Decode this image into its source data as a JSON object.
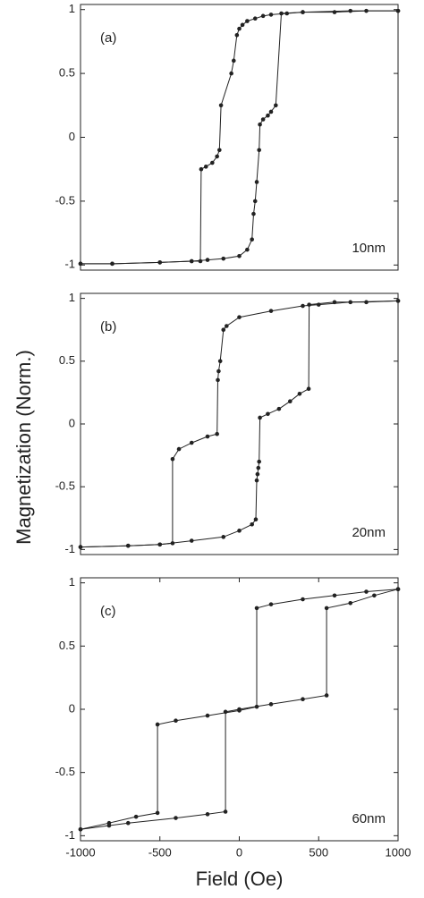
{
  "chart_data": [
    {
      "type": "line",
      "marker": "circle",
      "label": "(a)",
      "annotation": "10nm",
      "ylim": [
        -1.04,
        1.04
      ],
      "yticks": [
        -1,
        -0.5,
        0,
        0.5,
        1
      ],
      "xlim": [
        -1000,
        1000
      ],
      "series": [
        {
          "color": "#222222",
          "x": [
            1000,
            800,
            600,
            400,
            300,
            200,
            150,
            100,
            50,
            20,
            0,
            -15,
            -35,
            -50,
            -115,
            -125,
            -140,
            -170,
            -210,
            -240,
            -245,
            -300,
            -500,
            -800,
            -1000
          ],
          "values": [
            0.99,
            0.99,
            0.98,
            0.98,
            0.97,
            0.96,
            0.95,
            0.93,
            0.91,
            0.88,
            0.85,
            0.8,
            0.6,
            0.5,
            0.25,
            -0.1,
            -0.15,
            -0.2,
            -0.23,
            -0.25,
            -0.97,
            -0.97,
            -0.98,
            -0.99,
            -0.99
          ]
        },
        {
          "color": "#222222",
          "x": [
            -1000,
            -800,
            -500,
            -300,
            -200,
            -100,
            0,
            50,
            80,
            90,
            100,
            110,
            125,
            130,
            150,
            180,
            200,
            230,
            265,
            400,
            700,
            1000
          ],
          "values": [
            -0.99,
            -0.99,
            -0.98,
            -0.97,
            -0.96,
            -0.95,
            -0.93,
            -0.88,
            -0.8,
            -0.6,
            -0.5,
            -0.35,
            -0.1,
            0.1,
            0.14,
            0.17,
            0.2,
            0.25,
            0.97,
            0.98,
            0.99,
            0.99
          ]
        }
      ]
    },
    {
      "type": "line",
      "marker": "circle",
      "label": "(b)",
      "annotation": "20nm",
      "ylabel": "Magnetization (Norm.)",
      "ylim": [
        -1.04,
        1.04
      ],
      "yticks": [
        -1,
        -0.5,
        0,
        0.5,
        1
      ],
      "xlim": [
        -1000,
        1000
      ],
      "series": [
        {
          "color": "#222222",
          "x": [
            1000,
            700,
            500,
            400,
            200,
            0,
            -80,
            -100,
            -120,
            -130,
            -135,
            -140,
            -200,
            -300,
            -380,
            -420,
            -420,
            -500,
            -700,
            -1000
          ],
          "values": [
            0.98,
            0.97,
            0.95,
            0.94,
            0.9,
            0.85,
            0.78,
            0.75,
            0.5,
            0.42,
            0.35,
            -0.08,
            -0.1,
            -0.15,
            -0.2,
            -0.28,
            -0.95,
            -0.96,
            -0.97,
            -0.98
          ]
        },
        {
          "color": "#222222",
          "x": [
            -1000,
            -700,
            -500,
            -300,
            -100,
            0,
            80,
            104,
            110,
            115,
            120,
            125,
            130,
            180,
            250,
            320,
            380,
            437,
            440,
            600,
            800,
            1000
          ],
          "values": [
            -0.98,
            -0.97,
            -0.96,
            -0.93,
            -0.9,
            -0.85,
            -0.8,
            -0.76,
            -0.45,
            -0.4,
            -0.35,
            -0.3,
            0.05,
            0.08,
            0.12,
            0.18,
            0.24,
            0.28,
            0.95,
            0.97,
            0.97,
            0.98
          ]
        }
      ]
    },
    {
      "type": "line",
      "marker": "circle",
      "label": "(c)",
      "annotation": "60nm",
      "xlabel": "Field (Oe)",
      "ylim": [
        -1.04,
        1.04
      ],
      "yticks": [
        -1,
        -0.5,
        0,
        0.5,
        1
      ],
      "xlim": [
        -1000,
        1000
      ],
      "xticks": [
        -1000,
        -500,
        0,
        500,
        1000
      ],
      "series": [
        {
          "color": "#222222",
          "x": [
            1000,
            800,
            600,
            400,
            200,
            110,
            110,
            0,
            -200,
            -400,
            -515,
            -515,
            -650,
            -820,
            -1000
          ],
          "values": [
            0.95,
            0.93,
            0.9,
            0.87,
            0.83,
            0.8,
            0.02,
            -0.01,
            -0.05,
            -0.09,
            -0.12,
            -0.82,
            -0.85,
            -0.9,
            -0.95
          ]
        },
        {
          "color": "#222222",
          "x": [
            -1000,
            -820,
            -700,
            -400,
            -200,
            -87,
            -87,
            0,
            200,
            400,
            550,
            550,
            700,
            850,
            1000
          ],
          "values": [
            -0.95,
            -0.92,
            -0.9,
            -0.86,
            -0.83,
            -0.81,
            -0.02,
            0.0,
            0.04,
            0.08,
            0.11,
            0.8,
            0.84,
            0.9,
            0.95
          ]
        }
      ]
    }
  ]
}
